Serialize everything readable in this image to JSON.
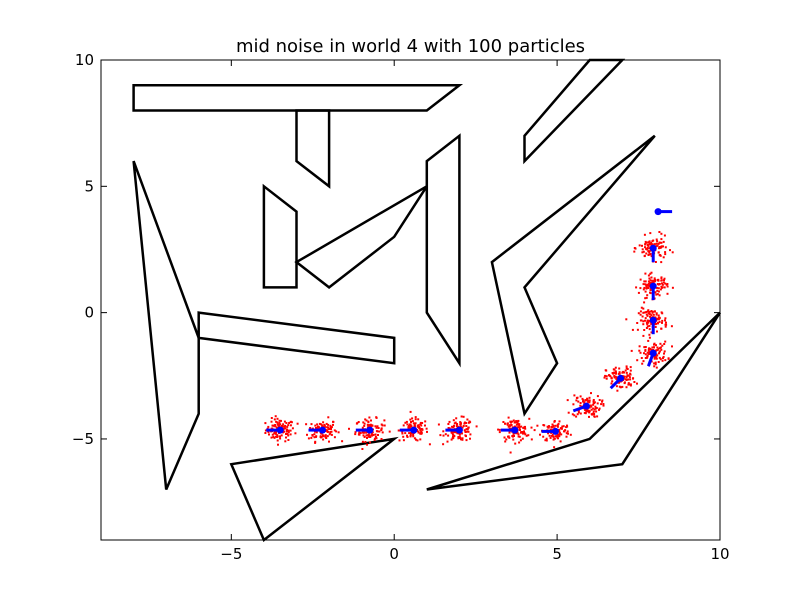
{
  "chart_data": {
    "type": "scatter",
    "title": "mid noise in world 4 with 100 particles",
    "xlabel": "",
    "ylabel": "",
    "xlim": [
      -9,
      10
    ],
    "ylim": [
      -9,
      10
    ],
    "xticks": [
      -5,
      0,
      5,
      10
    ],
    "yticks": [
      -5,
      0,
      5,
      10
    ],
    "xtick_labels": [
      "−5",
      "0",
      "5",
      "10"
    ],
    "ytick_labels": [
      "−5",
      "0",
      "5",
      "10"
    ],
    "grid": false,
    "legend": "none",
    "obstacles": [
      [
        [
          -8,
          9
        ],
        [
          2,
          9
        ],
        [
          1,
          8
        ],
        [
          -8,
          8
        ]
      ],
      [
        [
          -3,
          8
        ],
        [
          -2,
          8
        ],
        [
          -2,
          5
        ],
        [
          -3,
          6
        ]
      ],
      [
        [
          -4,
          5
        ],
        [
          -3,
          4
        ],
        [
          -3,
          1
        ],
        [
          -4,
          1
        ]
      ],
      [
        [
          -3,
          2
        ],
        [
          1,
          5
        ],
        [
          0,
          3
        ],
        [
          -2,
          1
        ]
      ],
      [
        [
          -8,
          6
        ],
        [
          -6,
          -1
        ],
        [
          -6,
          -4
        ],
        [
          -7,
          -7
        ]
      ],
      [
        [
          -6,
          0
        ],
        [
          0,
          -1
        ],
        [
          0,
          -2
        ],
        [
          -6,
          -1
        ]
      ],
      [
        [
          1,
          6
        ],
        [
          2,
          7
        ],
        [
          2,
          -2
        ],
        [
          1,
          0
        ]
      ],
      [
        [
          4,
          7
        ],
        [
          6,
          10
        ],
        [
          7,
          10
        ],
        [
          4,
          6
        ]
      ],
      [
        [
          3,
          2
        ],
        [
          8,
          7
        ],
        [
          4,
          1
        ],
        [
          5,
          -2
        ],
        [
          4,
          -4
        ]
      ],
      [
        [
          -5,
          -6
        ],
        [
          0,
          -5
        ],
        [
          -4,
          -9
        ]
      ],
      [
        [
          1,
          -7
        ],
        [
          7,
          -6
        ],
        [
          10,
          0
        ],
        [
          6,
          -5
        ]
      ]
    ],
    "robot_poses": [
      {
        "x": -3.5,
        "y": -4.65,
        "heading": 180
      },
      {
        "x": -2.2,
        "y": -4.65,
        "heading": 180
      },
      {
        "x": -0.75,
        "y": -4.65,
        "heading": 180
      },
      {
        "x": 0.6,
        "y": -4.65,
        "heading": 180
      },
      {
        "x": 2.0,
        "y": -4.65,
        "heading": 180
      },
      {
        "x": 3.7,
        "y": -4.65,
        "heading": 180
      },
      {
        "x": 4.95,
        "y": -4.7,
        "heading": 180
      },
      {
        "x": 5.9,
        "y": -3.7,
        "heading": 200
      },
      {
        "x": 6.95,
        "y": -2.6,
        "heading": 225
      },
      {
        "x": 7.95,
        "y": -1.6,
        "heading": 250
      },
      {
        "x": 7.95,
        "y": -0.3,
        "heading": 270
      },
      {
        "x": 7.95,
        "y": 1.05,
        "heading": 270
      },
      {
        "x": 7.95,
        "y": 2.55,
        "heading": 270
      },
      {
        "x": 8.1,
        "y": 4.0,
        "heading": 0
      }
    ],
    "particles_per_cluster": 100,
    "particle_spread": 0.22,
    "colors": {
      "obstacle": "#000000",
      "particle": "#ff0000",
      "robot": "#0000ff",
      "axes": "#000000",
      "background": "#ffffff"
    }
  }
}
